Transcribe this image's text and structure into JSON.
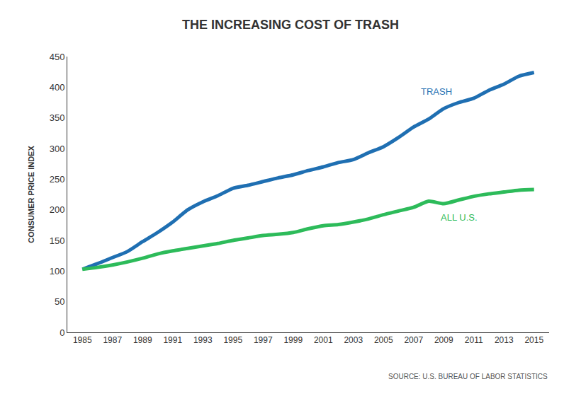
{
  "chart_data": {
    "type": "line",
    "title": "THE INCREASING COST OF TRASH",
    "y_label": "CONSUMER PRICE INDEX",
    "source": "SOURCE: U.S. BUREAU OF LABOR STATISTICS",
    "x": [
      1985,
      1986,
      1987,
      1988,
      1989,
      1990,
      1991,
      1992,
      1993,
      1994,
      1995,
      1996,
      1997,
      1998,
      1999,
      2000,
      2001,
      2002,
      2003,
      2004,
      2005,
      2006,
      2007,
      2008,
      2009,
      2010,
      2011,
      2012,
      2013,
      2014,
      2015
    ],
    "series": [
      {
        "name": "TRASH",
        "color": "#1f6fb2",
        "values": [
          103,
          112,
          122,
          132,
          148,
          163,
          180,
          200,
          213,
          223,
          235,
          240,
          246,
          252,
          257,
          264,
          270,
          277,
          282,
          293,
          303,
          318,
          335,
          348,
          365,
          375,
          382,
          395,
          405,
          418,
          424
        ]
      },
      {
        "name": "ALL U.S.",
        "color": "#2dbb5a",
        "values": [
          103,
          106,
          110,
          115,
          121,
          128,
          133,
          137,
          141,
          145,
          150,
          154,
          158,
          160,
          163,
          169,
          174,
          176,
          180,
          185,
          192,
          198,
          204,
          214,
          210,
          216,
          222,
          226,
          229,
          232,
          233
        ]
      }
    ],
    "annotations": [
      {
        "text": "TRASH",
        "x": 2008.5,
        "y": 393
      },
      {
        "text": "ALL U.S.",
        "x": 2010,
        "y": 188
      }
    ],
    "xlim": [
      1984,
      2016
    ],
    "xticks": [
      1985,
      1987,
      1989,
      1991,
      1993,
      1995,
      1997,
      1999,
      2001,
      2003,
      2005,
      2007,
      2009,
      2011,
      2013,
      2015
    ],
    "ylim": [
      0,
      450
    ],
    "yticks": [
      0,
      50,
      100,
      150,
      200,
      250,
      300,
      350,
      400,
      450
    ],
    "grid": false
  }
}
